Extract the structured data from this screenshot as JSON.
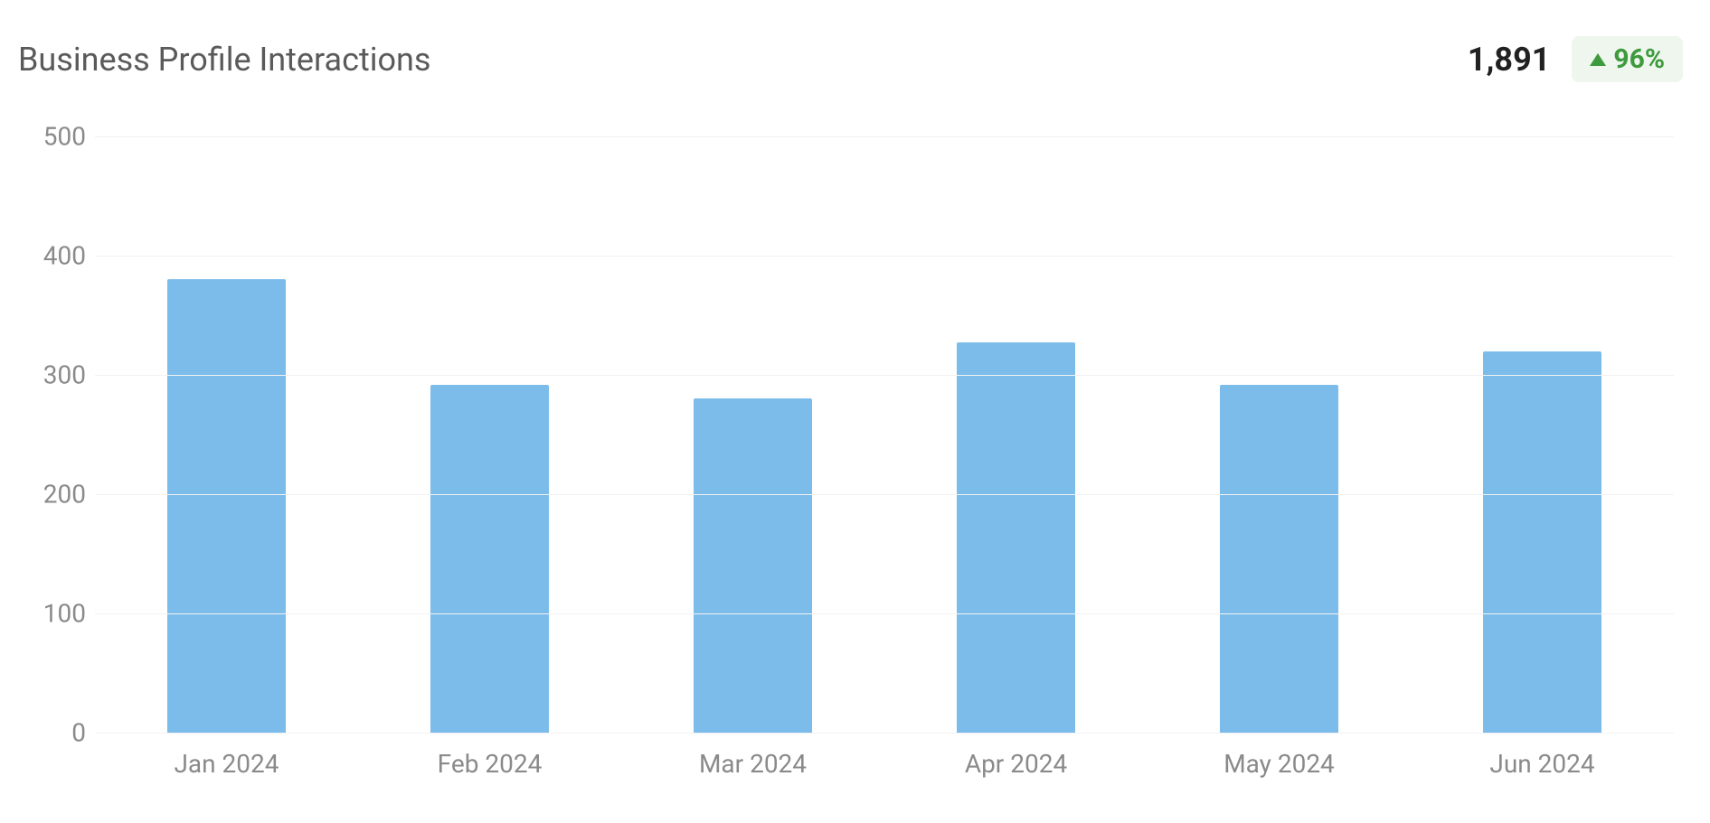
{
  "header": {
    "title": "Business Profile Interactions",
    "total": "1,891",
    "change_pct": "96%",
    "change_direction": "up",
    "badge_bg": "#eef6ee",
    "badge_fg": "#3d9a3d",
    "title_color": "#5a5a5a",
    "title_fontsize": 36,
    "total_color": "#212121",
    "total_fontsize": 36
  },
  "chart": {
    "type": "bar",
    "categories": [
      "Jan 2024",
      "Feb 2024",
      "Mar 2024",
      "Apr 2024",
      "May 2024",
      "Jun 2024"
    ],
    "values": [
      380,
      292,
      280,
      327,
      292,
      320
    ],
    "bar_color": "#7cbceb",
    "ylim": [
      0,
      500
    ],
    "ytick_step": 100,
    "yticks": [
      0,
      100,
      200,
      300,
      400,
      500
    ],
    "grid_color": "#f2f2f2",
    "axis_label_color": "#8a8a8a",
    "axis_label_fontsize": 28,
    "background_color": "#ffffff",
    "bar_width_ratio": 0.45
  }
}
